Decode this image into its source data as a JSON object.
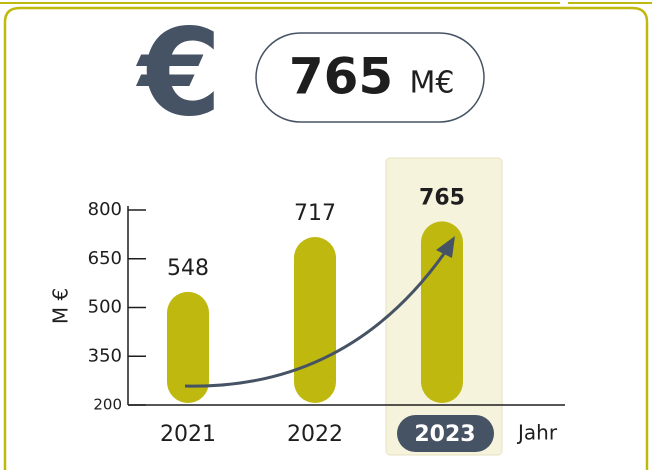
{
  "header": {
    "icon": "€",
    "value": "765",
    "unit": "M€"
  },
  "chart_data": {
    "type": "bar",
    "categories": [
      "2021",
      "2022",
      "2023"
    ],
    "values": [
      548,
      717,
      765
    ],
    "color": "#bfb80f",
    "ylim": [
      200,
      800
    ],
    "yticks": [
      200,
      350,
      500,
      650,
      800
    ],
    "y_label": "M €",
    "x_label": "Jahr",
    "highlight": 2,
    "trend_arrow": true
  }
}
